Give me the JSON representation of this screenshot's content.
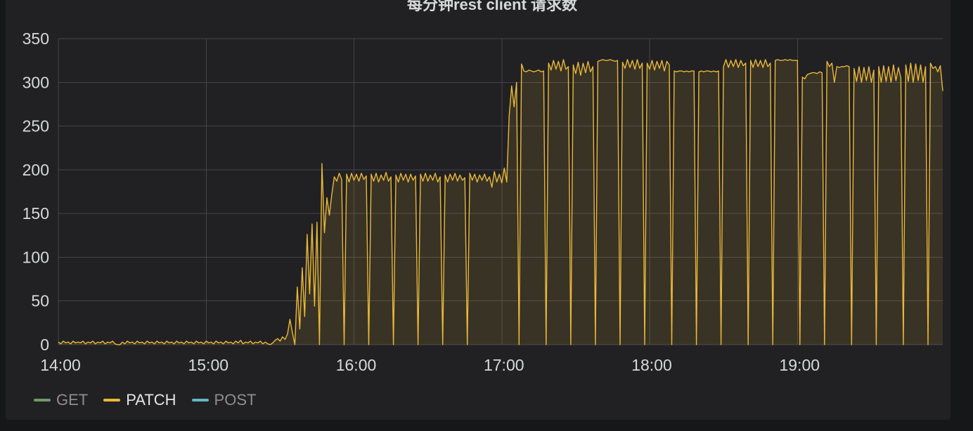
{
  "chart_data": {
    "type": "line",
    "title": "每分钟rest client 请求数",
    "xlabel": "",
    "ylabel": "",
    "xlim": [
      "14:00",
      "19:59"
    ],
    "ylim": [
      0,
      350
    ],
    "yticks": [
      0,
      50,
      100,
      150,
      200,
      250,
      300,
      350
    ],
    "xticks": [
      "14:00",
      "15:00",
      "16:00",
      "17:00",
      "18:00",
      "19:00"
    ],
    "grid": true,
    "fill": true,
    "legend_position": "bottom-left",
    "x": [
      "14:00",
      "14:01",
      "14:02",
      "14:03",
      "14:04",
      "14:05",
      "14:06",
      "14:07",
      "14:08",
      "14:09",
      "14:10",
      "14:11",
      "14:12",
      "14:13",
      "14:14",
      "14:15",
      "14:16",
      "14:17",
      "14:18",
      "14:19",
      "14:20",
      "14:21",
      "14:22",
      "14:23",
      "14:24",
      "14:25",
      "14:26",
      "14:27",
      "14:28",
      "14:29",
      "14:30",
      "14:31",
      "14:32",
      "14:33",
      "14:34",
      "14:35",
      "14:36",
      "14:37",
      "14:38",
      "14:39",
      "14:40",
      "14:41",
      "14:42",
      "14:43",
      "14:44",
      "14:45",
      "14:46",
      "14:47",
      "14:48",
      "14:49",
      "14:50",
      "14:51",
      "14:52",
      "14:53",
      "14:54",
      "14:55",
      "14:56",
      "14:57",
      "14:58",
      "14:59",
      "15:00",
      "15:01",
      "15:02",
      "15:03",
      "15:04",
      "15:05",
      "15:06",
      "15:07",
      "15:08",
      "15:09",
      "15:10",
      "15:11",
      "15:12",
      "15:13",
      "15:14",
      "15:15",
      "15:16",
      "15:17",
      "15:18",
      "15:19",
      "15:20",
      "15:21",
      "15:22",
      "15:23",
      "15:24",
      "15:25",
      "15:26",
      "15:27",
      "15:28",
      "15:29",
      "15:30",
      "15:31",
      "15:32",
      "15:33",
      "15:34",
      "15:35",
      "15:36",
      "15:37",
      "15:38",
      "15:39",
      "15:40",
      "15:41",
      "15:42",
      "15:43",
      "15:44",
      "15:45",
      "15:46",
      "15:47",
      "15:48",
      "15:49",
      "15:50",
      "15:51",
      "15:52",
      "15:53",
      "15:54",
      "15:55",
      "15:56",
      "15:57",
      "15:58",
      "15:59",
      "16:00",
      "16:01",
      "16:02",
      "16:03",
      "16:04",
      "16:05",
      "16:06",
      "16:07",
      "16:08",
      "16:09",
      "16:10",
      "16:11",
      "16:12",
      "16:13",
      "16:14",
      "16:15",
      "16:16",
      "16:17",
      "16:18",
      "16:19",
      "16:20",
      "16:21",
      "16:22",
      "16:23",
      "16:24",
      "16:25",
      "16:26",
      "16:27",
      "16:28",
      "16:29",
      "16:30",
      "16:31",
      "16:32",
      "16:33",
      "16:34",
      "16:35",
      "16:36",
      "16:37",
      "16:38",
      "16:39",
      "16:40",
      "16:41",
      "16:42",
      "16:43",
      "16:44",
      "16:45",
      "16:46",
      "16:47",
      "16:48",
      "16:49",
      "16:50",
      "16:51",
      "16:52",
      "16:53",
      "16:54",
      "16:55",
      "16:56",
      "16:57",
      "16:58",
      "16:59",
      "17:00",
      "17:01",
      "17:02",
      "17:03",
      "17:04",
      "17:05",
      "17:06",
      "17:07",
      "17:08",
      "17:09",
      "17:10",
      "17:11",
      "17:12",
      "17:13",
      "17:14",
      "17:15",
      "17:16",
      "17:17",
      "17:18",
      "17:19",
      "17:20",
      "17:21",
      "17:22",
      "17:23",
      "17:24",
      "17:25",
      "17:26",
      "17:27",
      "17:28",
      "17:29",
      "17:30",
      "17:31",
      "17:32",
      "17:33",
      "17:34",
      "17:35",
      "17:36",
      "17:37",
      "17:38",
      "17:39",
      "17:40",
      "17:41",
      "17:42",
      "17:43",
      "17:44",
      "17:45",
      "17:46",
      "17:47",
      "17:48",
      "17:49",
      "17:50",
      "17:51",
      "17:52",
      "17:53",
      "17:54",
      "17:55",
      "17:56",
      "17:57",
      "17:58",
      "17:59",
      "18:00",
      "18:01",
      "18:02",
      "18:03",
      "18:04",
      "18:05",
      "18:06",
      "18:07",
      "18:08",
      "18:09",
      "18:10",
      "18:11",
      "18:12",
      "18:13",
      "18:14",
      "18:15",
      "18:16",
      "18:17",
      "18:18",
      "18:19",
      "18:20",
      "18:21",
      "18:22",
      "18:23",
      "18:24",
      "18:25",
      "18:26",
      "18:27",
      "18:28",
      "18:29",
      "18:30",
      "18:31",
      "18:32",
      "18:33",
      "18:34",
      "18:35",
      "18:36",
      "18:37",
      "18:38",
      "18:39",
      "18:40",
      "18:41",
      "18:42",
      "18:43",
      "18:44",
      "18:45",
      "18:46",
      "18:47",
      "18:48",
      "18:49",
      "18:50",
      "18:51",
      "18:52",
      "18:53",
      "18:54",
      "18:55",
      "18:56",
      "18:57",
      "18:58",
      "18:59",
      "19:00",
      "19:01",
      "19:02",
      "19:03",
      "19:04",
      "19:05",
      "19:06",
      "19:07",
      "19:08",
      "19:09",
      "19:10",
      "19:11",
      "19:12",
      "19:13",
      "19:14",
      "19:15",
      "19:16",
      "19:17",
      "19:18",
      "19:19",
      "19:20",
      "19:21",
      "19:22",
      "19:23",
      "19:24",
      "19:25",
      "19:26",
      "19:27",
      "19:28",
      "19:29",
      "19:30",
      "19:31",
      "19:32",
      "19:33",
      "19:34",
      "19:35",
      "19:36",
      "19:37",
      "19:38",
      "19:39",
      "19:40",
      "19:41",
      "19:42",
      "19:43",
      "19:44",
      "19:45",
      "19:46",
      "19:47",
      "19:48",
      "19:49",
      "19:50",
      "19:51",
      "19:52",
      "19:53",
      "19:54",
      "19:55",
      "19:56",
      "19:57",
      "19:58",
      "19:59"
    ],
    "series": [
      {
        "name": "GET",
        "color": "#7EB26D",
        "hidden": true
      },
      {
        "name": "PATCH",
        "color": "#EAB839",
        "hidden": false,
        "values": [
          3,
          1,
          4,
          2,
          3,
          1,
          4,
          2,
          3,
          2,
          4,
          1,
          3,
          2,
          4,
          1,
          3,
          2,
          4,
          1,
          3,
          2,
          4,
          1,
          0,
          0,
          3,
          1,
          4,
          2,
          3,
          1,
          4,
          2,
          3,
          1,
          4,
          2,
          3,
          1,
          4,
          2,
          3,
          1,
          4,
          2,
          3,
          1,
          4,
          2,
          3,
          1,
          4,
          2,
          3,
          1,
          4,
          2,
          3,
          1,
          4,
          2,
          3,
          1,
          4,
          2,
          3,
          1,
          4,
          2,
          3,
          1,
          4,
          2,
          5,
          1,
          3,
          2,
          4,
          1,
          3,
          2,
          4,
          1,
          3,
          1,
          0,
          2,
          5,
          7,
          4,
          9,
          6,
          12,
          29,
          14,
          0,
          66,
          18,
          88,
          32,
          126,
          58,
          138,
          44,
          140,
          0,
          207,
          128,
          168,
          148,
          172,
          192,
          187,
          196,
          189,
          0,
          195,
          186,
          196,
          188,
          195,
          187,
          196,
          189,
          193,
          0,
          195,
          187,
          196,
          186,
          194,
          188,
          197,
          187,
          192,
          0,
          194,
          186,
          196,
          188,
          195,
          186,
          195,
          188,
          193,
          0,
          195,
          187,
          196,
          187,
          194,
          188,
          196,
          186,
          192,
          0,
          194,
          186,
          195,
          188,
          196,
          187,
          194,
          188,
          191,
          0,
          196,
          188,
          195,
          186,
          194,
          188,
          195,
          187,
          192,
          180,
          198,
          186,
          195,
          185,
          202,
          186,
          262,
          296,
          272,
          300,
          0,
          321,
          313,
          312,
          314,
          313,
          312,
          313,
          314,
          312,
          313,
          0,
          322,
          314,
          325,
          315,
          324,
          313,
          326,
          315,
          318,
          0,
          320,
          310,
          323,
          308,
          322,
          311,
          324,
          312,
          318,
          0,
          324,
          325,
          326,
          325,
          325,
          326,
          325,
          324,
          325,
          0,
          323,
          316,
          326,
          317,
          325,
          315,
          326,
          316,
          322,
          0,
          322,
          315,
          325,
          314,
          324,
          316,
          325,
          313,
          324,
          320,
          0,
          313,
          312,
          313,
          313,
          312,
          313,
          312,
          313,
          313,
          0,
          312,
          313,
          312,
          313,
          313,
          312,
          313,
          312,
          313,
          0,
          318,
          326,
          317,
          325,
          318,
          326,
          317,
          325,
          319,
          322,
          0,
          325,
          317,
          326,
          318,
          325,
          317,
          326,
          318,
          322,
          0,
          325,
          326,
          325,
          325,
          326,
          325,
          326,
          325,
          325,
          325,
          0,
          306,
          304,
          309,
          310,
          311,
          311,
          310,
          312,
          311,
          0,
          324,
          318,
          322,
          300,
          318,
          317,
          318,
          318,
          319,
          318,
          0,
          316,
          301,
          318,
          300,
          317,
          302,
          318,
          300,
          314,
          0,
          318,
          300,
          319,
          301,
          318,
          300,
          320,
          302,
          317,
          305,
          0,
          320,
          301,
          322,
          300,
          321,
          302,
          320,
          300,
          318,
          0,
          322,
          316,
          318,
          312,
          319,
          290
        ]
      },
      {
        "name": "POST",
        "color": "#6ED0E0",
        "hidden": true
      }
    ]
  }
}
